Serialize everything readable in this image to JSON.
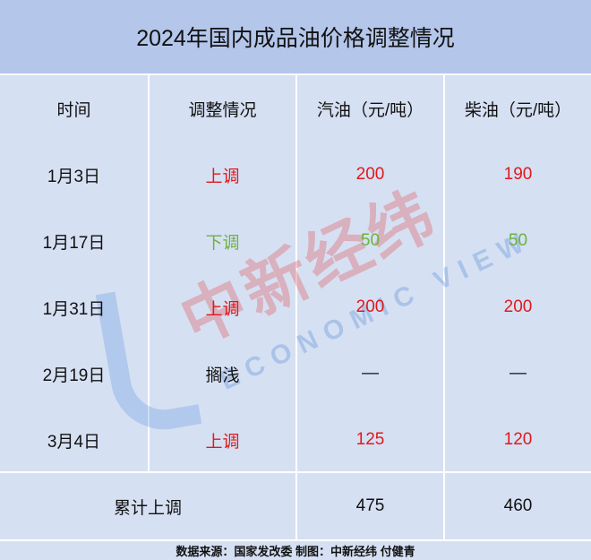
{
  "title": "2024年国内成品油价格调整情况",
  "headers": [
    "时间",
    "调整情况",
    "汽油（元/吨）",
    "柴油（元/吨）"
  ],
  "rows": [
    {
      "date": "1月3日",
      "status": "上调",
      "gasoline": "200",
      "diesel": "190",
      "color": "red"
    },
    {
      "date": "1月17日",
      "status": "下调",
      "gasoline": "50",
      "diesel": "50",
      "color": "green"
    },
    {
      "date": "1月31日",
      "status": "上调",
      "gasoline": "200",
      "diesel": "200",
      "color": "red"
    },
    {
      "date": "2月19日",
      "status": "搁浅",
      "gasoline": "—",
      "diesel": "—",
      "color": "black"
    },
    {
      "date": "3月4日",
      "status": "上调",
      "gasoline": "125",
      "diesel": "120",
      "color": "red"
    }
  ],
  "total": {
    "label": "累计上调",
    "gasoline": "475",
    "diesel": "460"
  },
  "footer": "数据来源：国家发改委  制图：中新经纬 付健青",
  "watermark": {
    "brand": "中新经纬",
    "english": "ECONOMIC VIEW"
  },
  "colors": {
    "header_bg": "#b4c6ea",
    "cell_bg": "#d6e0f3",
    "up": "#e0191b",
    "down": "#6cb33e"
  }
}
